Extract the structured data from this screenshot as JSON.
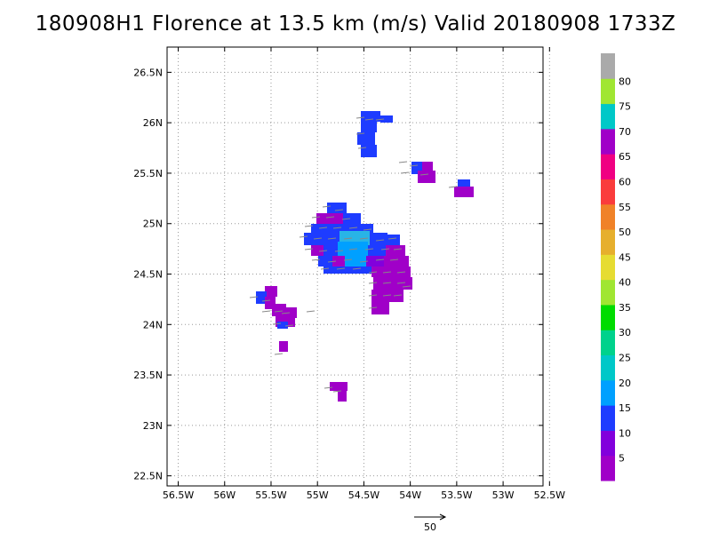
{
  "title": "180908H1 Florence at 13.5 km (m/s) Valid 20180908  1733Z",
  "map": {
    "lat_ticks": [
      "26.5N",
      "26N",
      "25.5N",
      "25N",
      "24.5N",
      "24N",
      "23.5N",
      "23N",
      "22.5N"
    ],
    "lon_ticks": [
      "56.5W",
      "56W",
      "55.5W",
      "55W",
      "54.5W",
      "54W",
      "53.5W",
      "53W",
      "52.5W"
    ],
    "lat_range": [
      22.4,
      26.75
    ],
    "lon_range": [
      -56.62,
      -52.57
    ],
    "grid": true,
    "grid_style": "dotted"
  },
  "colorbar": {
    "labels": [
      "5",
      "10",
      "15",
      "20",
      "25",
      "30",
      "35",
      "40",
      "45",
      "50",
      "55",
      "60",
      "65",
      "70",
      "75",
      "80"
    ],
    "colors": [
      "#a000c8",
      "#8200dc",
      "#1e3cff",
      "#00a0ff",
      "#00c8c8",
      "#00d28c",
      "#00dc00",
      "#a0e632",
      "#e6dc32",
      "#e6af2d",
      "#f08228",
      "#fa3c3c",
      "#f00082",
      "#a000c8",
      "#00c8c8",
      "#a0e632",
      "#aaaaaa"
    ]
  },
  "reference_vector": {
    "label": "50"
  }
}
